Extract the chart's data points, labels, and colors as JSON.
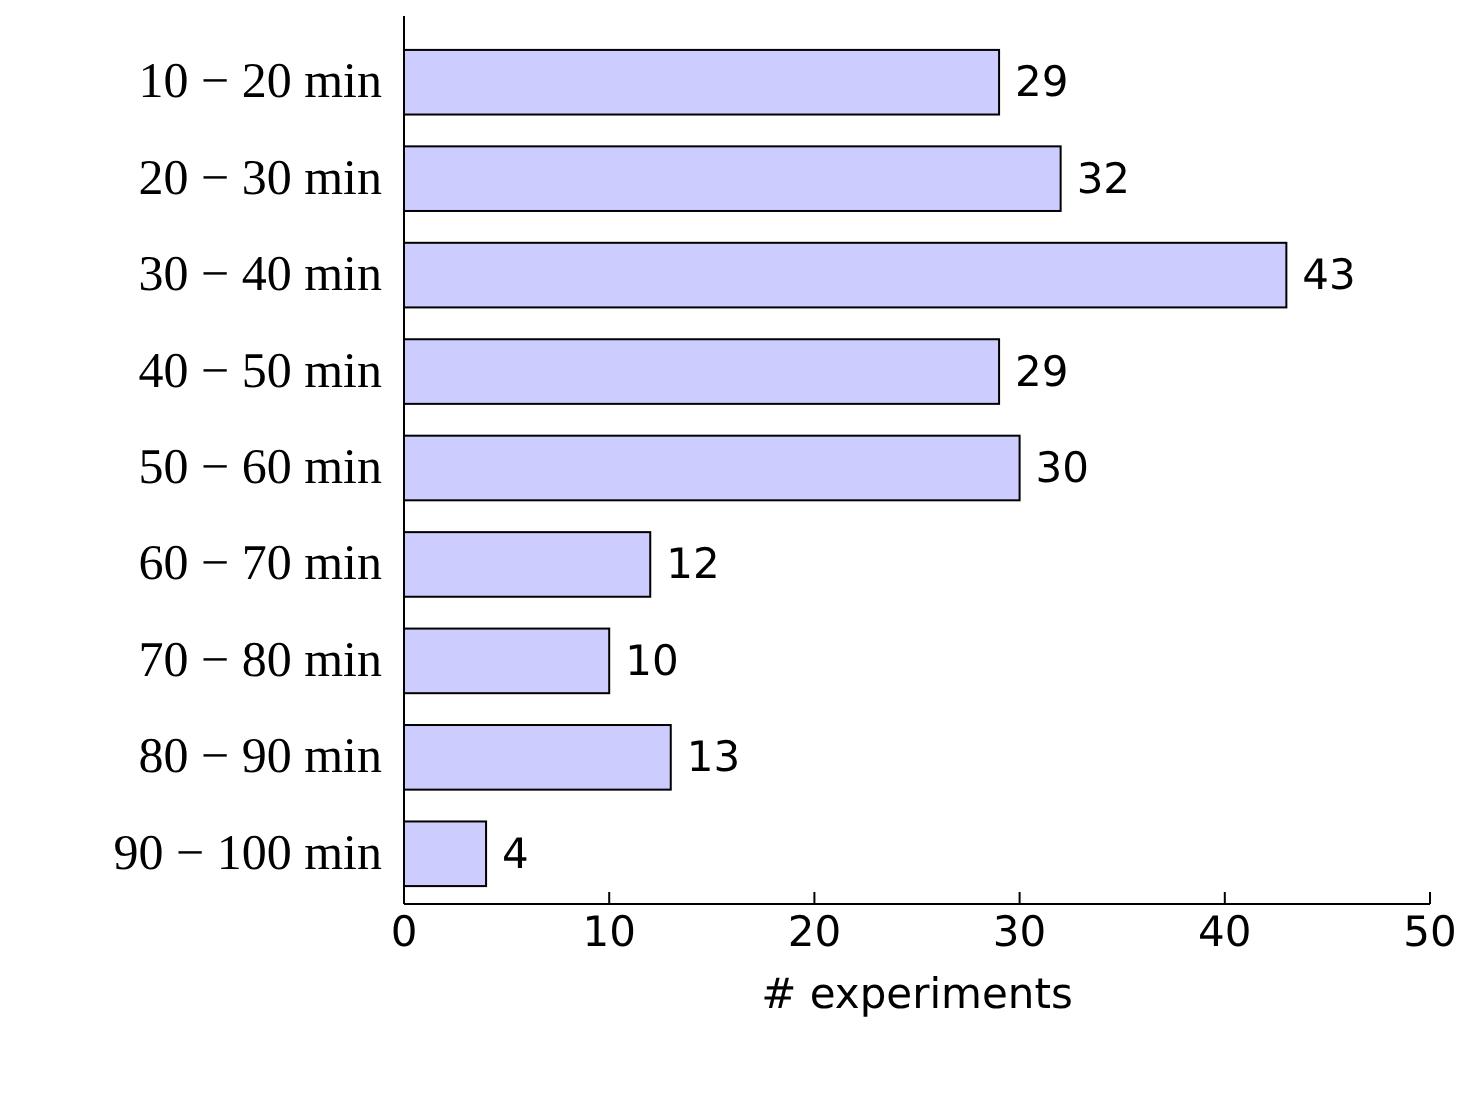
{
  "chart_data": {
    "type": "bar",
    "orientation": "horizontal",
    "xlabel": "# experiments",
    "categories": [
      "10 − 20 min",
      "20 − 30 min",
      "30 − 40 min",
      "40 − 50 min",
      "50 − 60 min",
      "60 − 70 min",
      "70 − 80 min",
      "80 − 90 min",
      "90 − 100 min"
    ],
    "values": [
      29,
      32,
      43,
      29,
      30,
      12,
      10,
      13,
      4
    ],
    "color": "#ccccff",
    "xlim": [
      0,
      50
    ],
    "xticks": [
      0,
      10,
      20,
      30,
      40,
      50
    ],
    "data_labels": true,
    "grid": false
  }
}
